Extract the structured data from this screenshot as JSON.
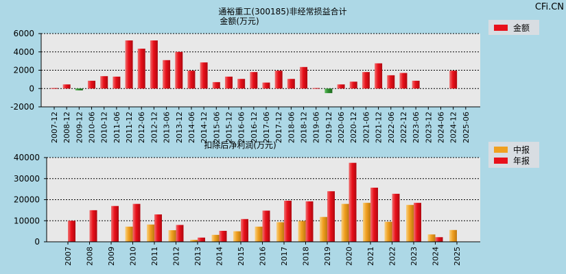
{
  "watermark": "CFi.CN",
  "chart_data": [
    {
      "type": "bar",
      "title": "通裕重工(300185)非经常损益合计",
      "subtitle": "金额(万元)",
      "xlabel": "",
      "ylabel": "",
      "ylim": [
        -2000,
        6000
      ],
      "yticks": [
        "6000",
        "4000",
        "2000",
        "0",
        "-2000"
      ],
      "ytick_values": [
        6000,
        4000,
        2000,
        0,
        -2000
      ],
      "grid": true,
      "legend_position": "top-right",
      "categories": [
        "2007-12",
        "2008-12",
        "2009-12",
        "2010-06",
        "2010-12",
        "2011-06",
        "2011-12",
        "2012-06",
        "2012-12",
        "2013-06",
        "2013-12",
        "2014-06",
        "2014-12",
        "2015-06",
        "2015-12",
        "2016-06",
        "2016-12",
        "2017-06",
        "2017-12",
        "2018-06",
        "2018-12",
        "2019-06",
        "2019-12",
        "2020-06",
        "2020-12",
        "2021-06",
        "2021-12",
        "2022-06",
        "2022-12",
        "2023-06",
        "2023-12",
        "2024-06",
        "2024-12",
        "2025-06"
      ],
      "series": [
        {
          "name": "金额",
          "color": "#e8101a",
          "negative_color": "#2e8b2e",
          "values": [
            50,
            450,
            -200,
            850,
            1350,
            1300,
            5250,
            4350,
            5250,
            3100,
            4000,
            1950,
            2850,
            700,
            1300,
            1050,
            1800,
            650,
            1950,
            1050,
            2350,
            50,
            -500,
            450,
            750,
            1800,
            2750,
            1450,
            1700,
            850,
            null,
            null,
            1950,
            null
          ]
        }
      ]
    },
    {
      "type": "bar",
      "title": "扣除后净利润(万元)",
      "xlabel": "",
      "ylabel": "",
      "ylim": [
        0,
        40000
      ],
      "yticks": [
        "40000",
        "30000",
        "20000",
        "10000",
        "0"
      ],
      "ytick_values": [
        40000,
        30000,
        20000,
        10000,
        0
      ],
      "grid": true,
      "legend_position": "top-right",
      "categories": [
        "2007",
        "2008",
        "2009",
        "2010",
        "2011",
        "2012",
        "2013",
        "2014",
        "2015",
        "2016",
        "2017",
        "2018",
        "2019",
        "2020",
        "2021",
        "2022",
        "2023",
        "2024",
        "2025"
      ],
      "series": [
        {
          "name": "中报",
          "color": "#f0a020",
          "values": [
            null,
            null,
            null,
            7200,
            8200,
            5500,
            900,
            3300,
            5000,
            7200,
            9300,
            9900,
            11800,
            18000,
            18500,
            9500,
            17500,
            3500,
            5600
          ]
        },
        {
          "name": "年报",
          "color": "#e8101a",
          "values": [
            10000,
            15000,
            17000,
            18000,
            13000,
            8000,
            2000,
            5200,
            10800,
            14800,
            19500,
            19200,
            24000,
            37500,
            25700,
            22800,
            18500,
            2200,
            null
          ]
        }
      ]
    }
  ]
}
